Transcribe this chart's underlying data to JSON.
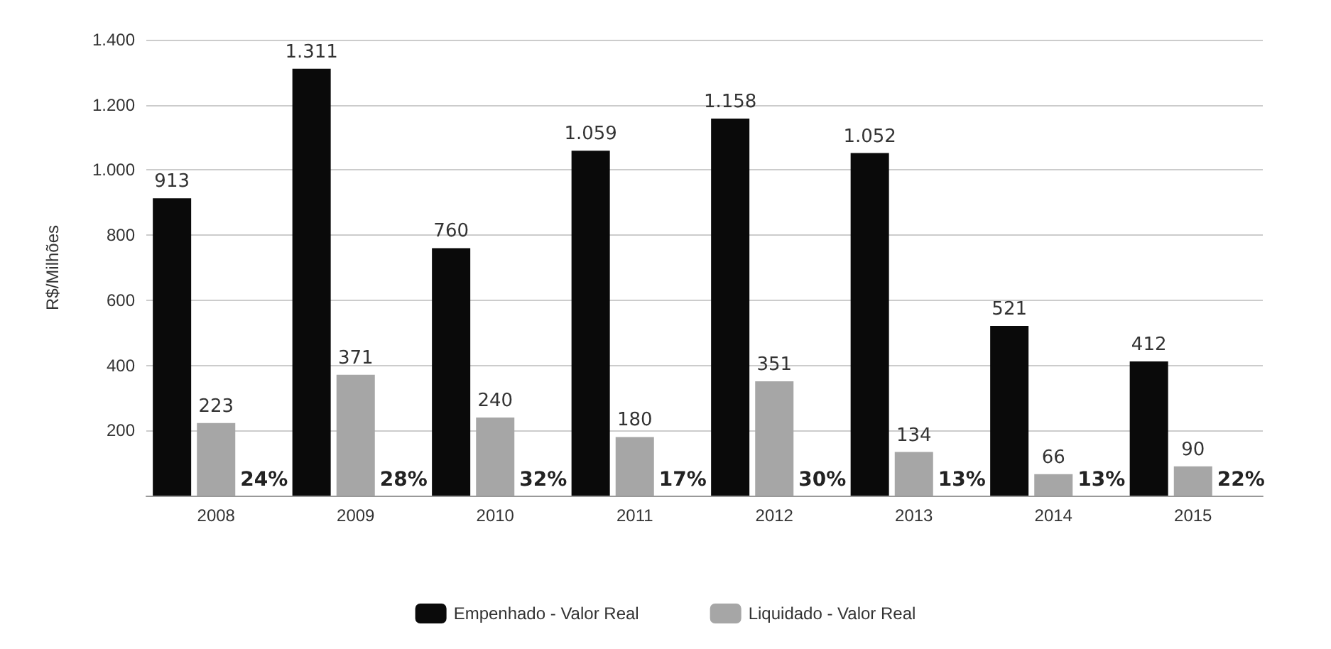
{
  "chart_data": {
    "type": "bar",
    "ylabel": "R$/Milhões",
    "categories": [
      "2008",
      "2009",
      "2010",
      "2011",
      "2012",
      "2013",
      "2014",
      "2015"
    ],
    "series": [
      {
        "name": "Empenhado - Valor Real",
        "color": "#0a0a0a",
        "values": [
          913,
          1311,
          760,
          1059,
          1158,
          1052,
          521,
          412
        ],
        "value_labels": [
          "913",
          "1.311",
          "760",
          "1.059",
          "1.158",
          "1.052",
          "521",
          "412"
        ]
      },
      {
        "name": "Liquidado - Valor Real",
        "color": "#a6a6a6",
        "values": [
          223,
          371,
          240,
          180,
          351,
          134,
          66,
          90
        ],
        "value_labels": [
          "223",
          "371",
          "240",
          "180",
          "351",
          "134",
          "66",
          "90"
        ]
      }
    ],
    "ylim": [
      0,
      1400
    ],
    "yticks": [
      {
        "value": 0,
        "label": null
      },
      200,
      400,
      600,
      800,
      {
        "value": 1000,
        "label": "1.000"
      },
      {
        "value": 1200,
        "label": "1.200"
      },
      {
        "value": 1400,
        "label": "1.400"
      }
    ],
    "grid": "y",
    "legend": "bottom",
    "annotations": [
      "24%",
      "28%",
      "32%",
      "17%",
      "30%",
      "13%",
      "13%",
      "22%"
    ]
  }
}
